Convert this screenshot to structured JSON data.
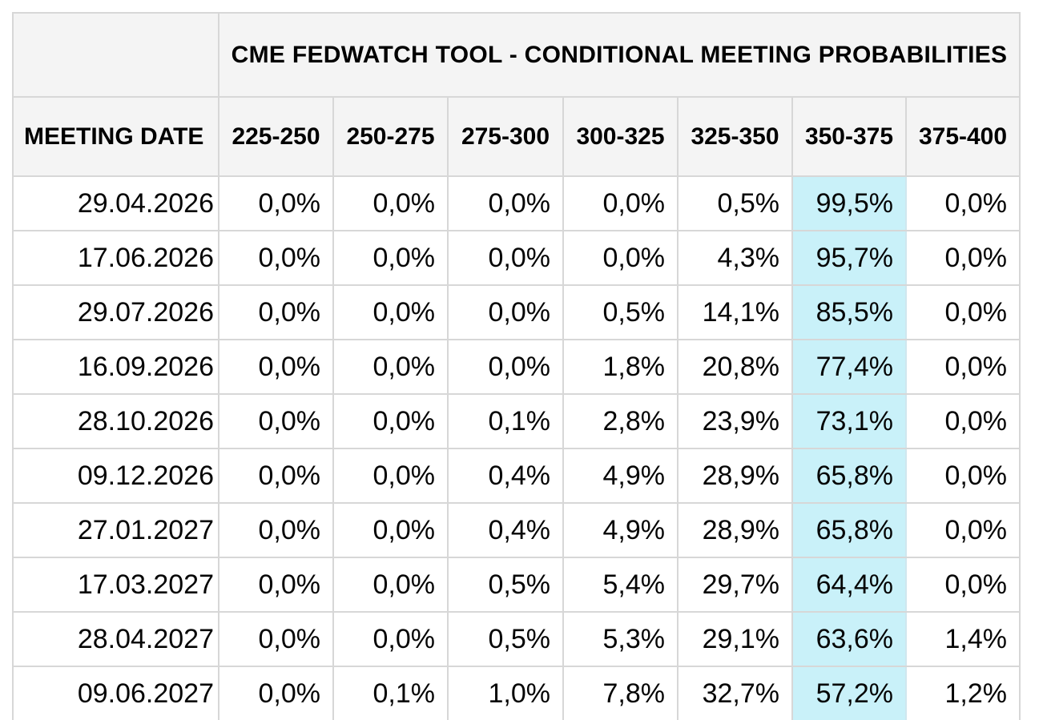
{
  "title": "CME FEDWATCH TOOL - CONDITIONAL MEETING PROBABILITIES",
  "colors": {
    "highlight_cell_bg": "#c9f1f9",
    "header_bg": "#f4f4f4",
    "border": "#d7d7d7",
    "text": "#000000"
  },
  "table": {
    "date_header": "MEETING DATE",
    "rate_headers": [
      "225-250",
      "250-275",
      "275-300",
      "300-325",
      "325-350",
      "350-375",
      "375-400"
    ],
    "highlight_column": "350-375",
    "rows": [
      {
        "date": "29.04.2026",
        "values": [
          "0,0%",
          "0,0%",
          "0,0%",
          "0,0%",
          "0,5%",
          "99,5%",
          "0,0%"
        ]
      },
      {
        "date": "17.06.2026",
        "values": [
          "0,0%",
          "0,0%",
          "0,0%",
          "0,0%",
          "4,3%",
          "95,7%",
          "0,0%"
        ]
      },
      {
        "date": "29.07.2026",
        "values": [
          "0,0%",
          "0,0%",
          "0,0%",
          "0,5%",
          "14,1%",
          "85,5%",
          "0,0%"
        ]
      },
      {
        "date": "16.09.2026",
        "values": [
          "0,0%",
          "0,0%",
          "0,0%",
          "1,8%",
          "20,8%",
          "77,4%",
          "0,0%"
        ]
      },
      {
        "date": "28.10.2026",
        "values": [
          "0,0%",
          "0,0%",
          "0,1%",
          "2,8%",
          "23,9%",
          "73,1%",
          "0,0%"
        ]
      },
      {
        "date": "09.12.2026",
        "values": [
          "0,0%",
          "0,0%",
          "0,4%",
          "4,9%",
          "28,9%",
          "65,8%",
          "0,0%"
        ]
      },
      {
        "date": "27.01.2027",
        "values": [
          "0,0%",
          "0,0%",
          "0,4%",
          "4,9%",
          "28,9%",
          "65,8%",
          "0,0%"
        ]
      },
      {
        "date": "17.03.2027",
        "values": [
          "0,0%",
          "0,0%",
          "0,5%",
          "5,4%",
          "29,7%",
          "64,4%",
          "0,0%"
        ]
      },
      {
        "date": "28.04.2027",
        "values": [
          "0,0%",
          "0,0%",
          "0,5%",
          "5,3%",
          "29,1%",
          "63,6%",
          "1,4%"
        ]
      },
      {
        "date": "09.06.2027",
        "values": [
          "0,0%",
          "0,1%",
          "1,0%",
          "7,8%",
          "32,7%",
          "57,2%",
          "1,2%"
        ]
      }
    ]
  },
  "chart_data": {
    "type": "table",
    "title": "CME FEDWATCH TOOL - CONDITIONAL MEETING PROBABILITIES",
    "columns": [
      "MEETING DATE",
      "225-250",
      "250-275",
      "275-300",
      "300-325",
      "325-350",
      "350-375",
      "375-400"
    ],
    "highlighted_column": "350-375",
    "unit": "percent",
    "decimal_separator": ",",
    "rows": [
      [
        "29.04.2026",
        0.0,
        0.0,
        0.0,
        0.0,
        0.5,
        99.5,
        0.0
      ],
      [
        "17.06.2026",
        0.0,
        0.0,
        0.0,
        0.0,
        4.3,
        95.7,
        0.0
      ],
      [
        "29.07.2026",
        0.0,
        0.0,
        0.0,
        0.5,
        14.1,
        85.5,
        0.0
      ],
      [
        "16.09.2026",
        0.0,
        0.0,
        0.0,
        1.8,
        20.8,
        77.4,
        0.0
      ],
      [
        "28.10.2026",
        0.0,
        0.0,
        0.1,
        2.8,
        23.9,
        73.1,
        0.0
      ],
      [
        "09.12.2026",
        0.0,
        0.0,
        0.4,
        4.9,
        28.9,
        65.8,
        0.0
      ],
      [
        "27.01.2027",
        0.0,
        0.0,
        0.4,
        4.9,
        28.9,
        65.8,
        0.0
      ],
      [
        "17.03.2027",
        0.0,
        0.0,
        0.5,
        5.4,
        29.7,
        64.4,
        0.0
      ],
      [
        "28.04.2027",
        0.0,
        0.0,
        0.5,
        5.3,
        29.1,
        63.6,
        1.4
      ],
      [
        "09.06.2027",
        0.0,
        0.1,
        1.0,
        7.8,
        32.7,
        57.2,
        1.2
      ]
    ]
  }
}
